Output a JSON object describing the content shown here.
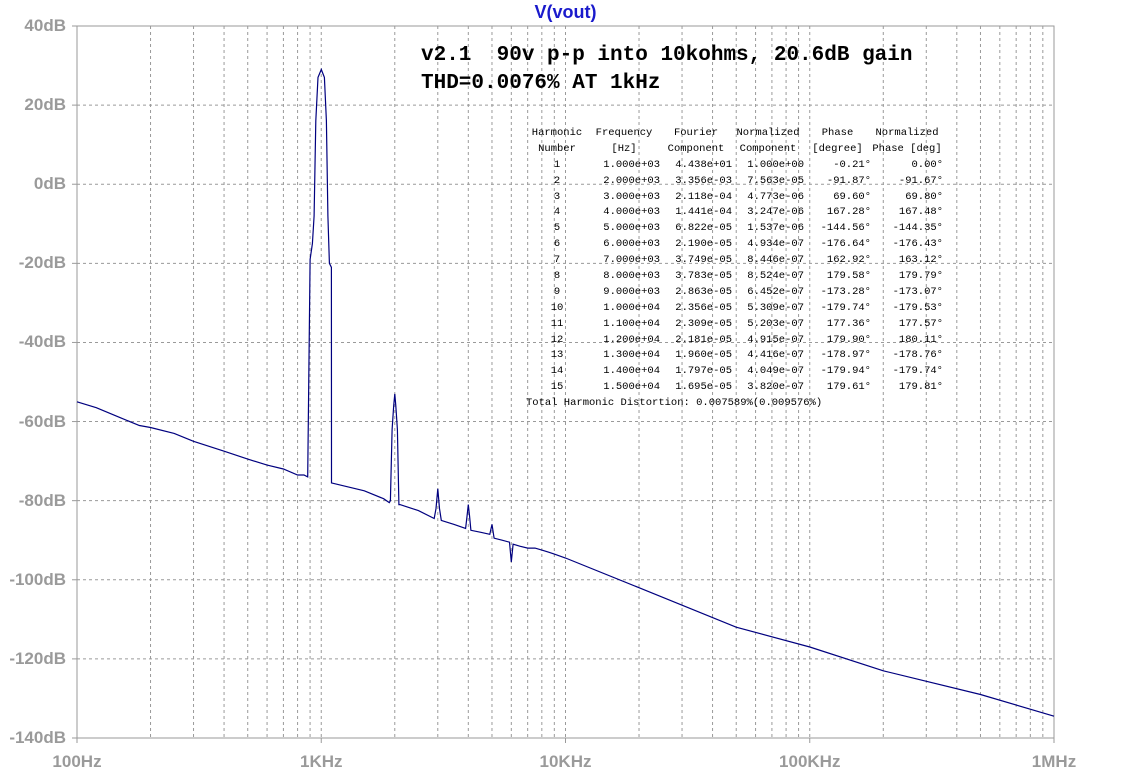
{
  "chart_data": {
    "type": "line",
    "title": "V(vout)",
    "x_scale": "log",
    "xlim": [
      100,
      1000000
    ],
    "ylim": [
      -140,
      40
    ],
    "y_unit": "dB",
    "grid": true,
    "x_ticks": [
      "100Hz",
      "1KHz",
      "10KHz",
      "100KHz",
      "1MHz"
    ],
    "y_ticks": [
      "40dB",
      "20dB",
      "0dB",
      "-20dB",
      "-40dB",
      "-60dB",
      "-80dB",
      "-100dB",
      "-120dB",
      "-140dB"
    ],
    "series": [
      {
        "color": "#00007f",
        "x": [
          100,
          120,
          150,
          180,
          200,
          250,
          300,
          400,
          500,
          600,
          700,
          800,
          850,
          880,
          900,
          920,
          935,
          950,
          970,
          1000,
          1030,
          1050,
          1065,
          1080,
          1100,
          1101,
          1500,
          1800,
          1900,
          1920,
          1950,
          1980,
          2000,
          2020,
          2050,
          2080,
          2100,
          2500,
          2900,
          2950,
          3000,
          3050,
          3100,
          3500,
          3900,
          3950,
          4000,
          4050,
          4100,
          4500,
          4900,
          5000,
          5100,
          5500,
          5900,
          6000,
          6100,
          6500,
          7000,
          7500,
          8000,
          8500,
          9000,
          10000,
          20000,
          50000,
          100000,
          200000,
          500000,
          1000000
        ],
        "y": [
          -55,
          -56.5,
          -59,
          -61,
          -61.5,
          -63,
          -65,
          -67.5,
          -69.5,
          -71,
          -72,
          -73.5,
          -73.5,
          -74,
          -19,
          -15,
          -8,
          16,
          27,
          29,
          27,
          16,
          -8,
          -20,
          -21,
          -75.5,
          -77.5,
          -79.5,
          -80.5,
          -80,
          -62,
          -56,
          -53,
          -56,
          -62,
          -81,
          -81,
          -82.5,
          -84.5,
          -82,
          -77,
          -82,
          -85,
          -86,
          -87,
          -84,
          -81,
          -84,
          -87.5,
          -88,
          -88.5,
          -86,
          -89.5,
          -90,
          -90.5,
          -95.5,
          -91,
          -91.5,
          -92,
          -92,
          -92.5,
          -93,
          -93.5,
          -94.5,
          -102,
          -112,
          -117,
          -123,
          -129,
          -134.5
        ]
      }
    ]
  },
  "annotation": {
    "line1": "v2.1  90v p-p into 10kohms, 20.6dB gain",
    "line2": "THD=0.0076% AT 1kHz"
  },
  "fourier": {
    "header1": [
      "Harmonic",
      "Frequency",
      "Fourier",
      "Normalized",
      "Phase",
      "Normalized"
    ],
    "header2": [
      "Number",
      "[Hz]",
      "Component",
      "Component",
      "[degree]",
      "Phase [deg]"
    ],
    "rows": [
      [
        "1",
        "1.000e+03",
        "4.438e+01",
        "1.000e+00",
        "-0.21°",
        "0.00°"
      ],
      [
        "2",
        "2.000e+03",
        "3.356e-03",
        "7.563e-05",
        "-91.87°",
        "-91.67°"
      ],
      [
        "3",
        "3.000e+03",
        "2.118e-04",
        "4.773e-06",
        "69.60°",
        "69.80°"
      ],
      [
        "4",
        "4.000e+03",
        "1.441e-04",
        "3.247e-06",
        "167.28°",
        "167.48°"
      ],
      [
        "5",
        "5.000e+03",
        "6.822e-05",
        "1.537e-06",
        "-144.56°",
        "-144.35°"
      ],
      [
        "6",
        "6.000e+03",
        "2.190e-05",
        "4.934e-07",
        "-176.64°",
        "-176.43°"
      ],
      [
        "7",
        "7.000e+03",
        "3.749e-05",
        "8.446e-07",
        "162.92°",
        "163.12°"
      ],
      [
        "8",
        "8.000e+03",
        "3.783e-05",
        "8.524e-07",
        "179.58°",
        "179.79°"
      ],
      [
        "9",
        "9.000e+03",
        "2.863e-05",
        "6.452e-07",
        "-173.28°",
        "-173.07°"
      ],
      [
        "10",
        "1.000e+04",
        "2.356e-05",
        "5.309e-07",
        "-179.74°",
        "-179.53°"
      ],
      [
        "11",
        "1.100e+04",
        "2.309e-05",
        "5.203e-07",
        "177.36°",
        "177.57°"
      ],
      [
        "12",
        "1.200e+04",
        "2.181e-05",
        "4.915e-07",
        "179.90°",
        "180.11°"
      ],
      [
        "13",
        "1.300e+04",
        "1.960e-05",
        "4.416e-07",
        "-178.97°",
        "-178.76°"
      ],
      [
        "14",
        "1.400e+04",
        "1.797e-05",
        "4.049e-07",
        "-179.94°",
        "-179.74°"
      ],
      [
        "15",
        "1.500e+04",
        "1.695e-05",
        "3.820e-07",
        "179.61°",
        "179.81°"
      ]
    ],
    "thd": "Total Harmonic Distortion: 0.007589%(0.009576%)"
  },
  "colors": {
    "trace": "#00007f",
    "title": "#1a1acc",
    "grid": "#9a9a9a",
    "axis_labels": "#9a9a9a"
  }
}
